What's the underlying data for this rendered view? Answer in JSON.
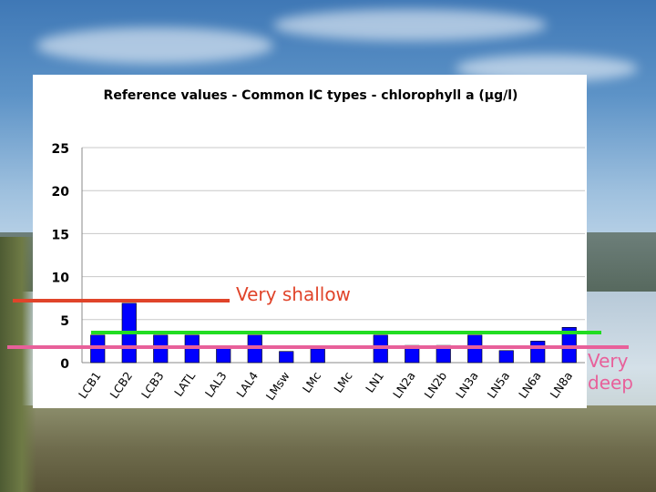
{
  "chart_data": {
    "type": "bar",
    "title": "Reference values - Common IC types - chlorophyll a (µg/l)",
    "xlabel": "",
    "ylabel": "",
    "ylim": [
      0,
      25
    ],
    "yticks": [
      0,
      5,
      10,
      15,
      20,
      25
    ],
    "grid": true,
    "categories": [
      "LCB1",
      "LCB2",
      "LCB3",
      "LATL",
      "LAL3",
      "LAL4",
      "LMsw",
      "LMc",
      "LMc",
      "LN1",
      "LN2a",
      "LN2b",
      "LN3a",
      "LN5a",
      "LN6a",
      "LN8a"
    ],
    "values": [
      3.2,
      6.9,
      3.2,
      3.2,
      1.9,
      3.2,
      1.3,
      1.6,
      0,
      3.2,
      2.0,
      2.0,
      3.2,
      1.4,
      2.5,
      4.1
    ],
    "bar_color": "#0000ff"
  },
  "annotations": {
    "shallow": {
      "label": "Very shallow",
      "color": "#e0442a",
      "value": 7.2
    },
    "green_line": {
      "color": "#22dd22",
      "value": 3.5
    },
    "deep": {
      "label_line1": "Very",
      "label_line2": "deep",
      "color": "#e8609a",
      "value": 1.8
    }
  }
}
